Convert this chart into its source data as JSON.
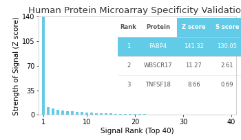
{
  "title": "Human Protein Microarray Specificity Validation",
  "xlabel": "Signal Rank (Top 40)",
  "ylabel": "Strength of Signal (Z score)",
  "bar_color": "#62cce8",
  "ylim": [
    0,
    140
  ],
  "yticks": [
    0,
    35,
    70,
    105,
    140
  ],
  "xlim": [
    0.0,
    41
  ],
  "xticks": [
    1,
    10,
    20,
    30,
    40
  ],
  "bar_values": [
    141.32,
    11.27,
    8.66,
    7.5,
    6.2,
    5.5,
    4.8,
    4.2,
    3.8,
    3.4,
    3.0,
    2.7,
    2.4,
    2.1,
    1.9,
    1.7,
    1.5,
    1.3,
    1.1,
    1.0,
    0.9,
    0.8,
    0.7,
    0.65,
    0.6,
    0.55,
    0.5,
    0.45,
    0.4,
    0.38,
    0.35,
    0.33,
    0.3,
    0.28,
    0.25,
    0.23,
    0.2,
    0.18,
    0.15,
    0.12
  ],
  "table_header": [
    "Rank",
    "Protein",
    "Z score",
    "S score"
  ],
  "table_rows": [
    [
      "1",
      "FABP4",
      "141.32",
      "130.05"
    ],
    [
      "2",
      "WBSCR17",
      "11.27",
      "2.61"
    ],
    [
      "3",
      "TNFSF18",
      "8.66",
      "0.69"
    ]
  ],
  "highlight_row": 0,
  "highlight_color": "#62cce8",
  "header_blue_cols": [
    2,
    3
  ],
  "header_blue_color": "#62cce8",
  "header_text_color": "#555555",
  "highlight_text_color": "#ffffff",
  "normal_text_color": "#555555",
  "background_color": "#ffffff",
  "title_fontsize": 9.5,
  "axis_fontsize": 7.5,
  "tick_fontsize": 7
}
